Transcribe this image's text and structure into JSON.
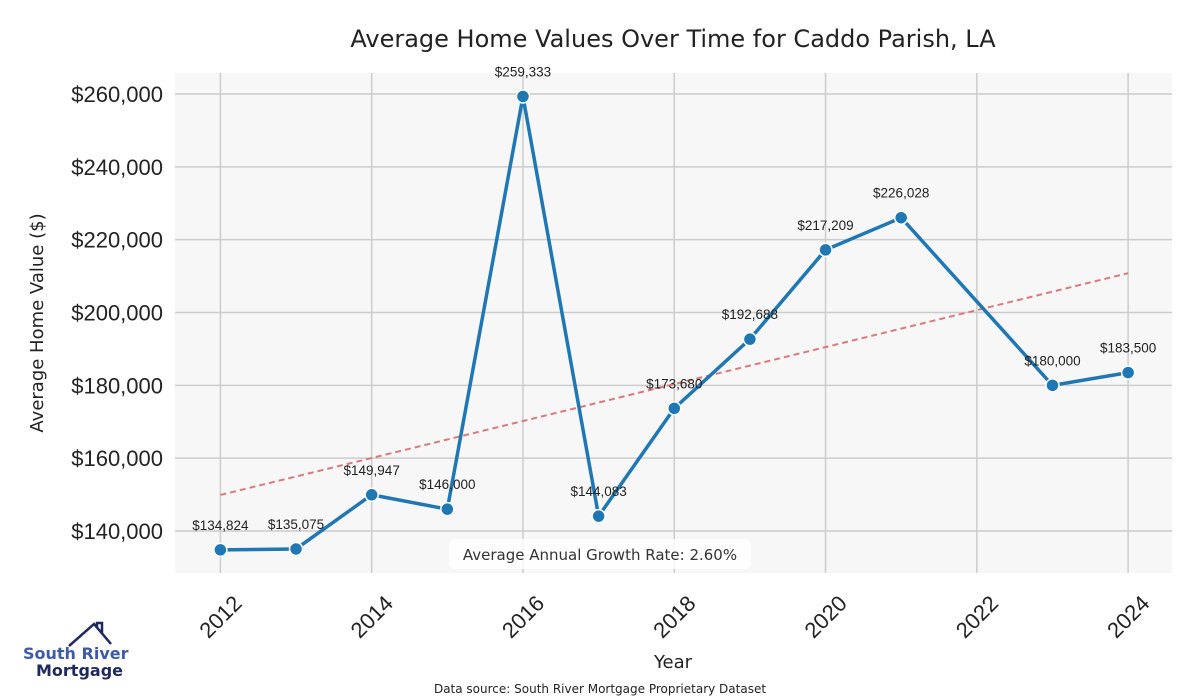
{
  "chart_data": {
    "type": "line",
    "title": "Average Home Values Over Time for Caddo Parish, LA",
    "xlabel": "Year",
    "ylabel": "Average Home Value ($)",
    "x": [
      2012,
      2013,
      2014,
      2015,
      2016,
      2017,
      2018,
      2019,
      2020,
      2021,
      2023,
      2024
    ],
    "series": [
      {
        "values": [
          134824,
          135075,
          149947,
          146000,
          259333,
          144083,
          173680,
          192688,
          217209,
          226028,
          180000,
          183500
        ],
        "labels": [
          "$134,824",
          "$135,075",
          "$149,947",
          "$146,000",
          "$259,333",
          "$144,083",
          "$173,680",
          "$192,688",
          "$217,209",
          "$226,028",
          "$180,000",
          "$183,500"
        ],
        "color": "#1f77b4"
      }
    ],
    "trendline": {
      "x": [
        2012,
        2024
      ],
      "y": [
        149900,
        210800
      ],
      "color": "#d97a7c",
      "style": "dashed"
    },
    "xticks": [
      2012,
      2014,
      2016,
      2018,
      2020,
      2022,
      2024
    ],
    "xtick_labels": [
      "2012",
      "2014",
      "2016",
      "2018",
      "2020",
      "2022",
      "2024"
    ],
    "yticks": [
      140000,
      160000,
      180000,
      200000,
      220000,
      240000,
      260000
    ],
    "ytick_labels": [
      "$140,000",
      "$160,000",
      "$180,000",
      "$200,000",
      "$220,000",
      "$240,000",
      "$260,000"
    ],
    "xlim": [
      2011.4,
      2024.58
    ],
    "ylim": [
      128470,
      265770
    ],
    "grid": true,
    "plot_background": "#f7f7f7",
    "grid_color": "#cccccc",
    "annotation": "Average Annual Growth Rate: 2.60%"
  },
  "footer": {
    "source": "Data source: South River Mortgage Proprietary Dataset"
  },
  "logo": {
    "line1": "South River",
    "line2": "Mortgage"
  }
}
